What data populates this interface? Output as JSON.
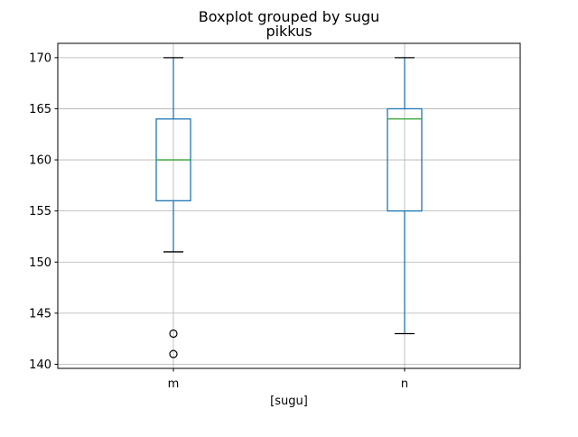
{
  "chart_data": {
    "type": "boxplot",
    "suptitle": "Boxplot grouped by sugu",
    "title": "pikkus",
    "xlabel": "[sugu]",
    "ylabel": "",
    "categories": [
      "m",
      "n"
    ],
    "boxes": [
      {
        "category": "m",
        "whisker_low": 151,
        "q1": 156,
        "median": 160,
        "q3": 164,
        "whisker_high": 170,
        "outliers": [
          143,
          141
        ]
      },
      {
        "category": "n",
        "whisker_low": 143,
        "q1": 155,
        "median": 164,
        "q3": 165,
        "whisker_high": 170,
        "outliers": []
      }
    ],
    "ylim": [
      139.6,
      171.4
    ],
    "yticks": [
      140,
      145,
      150,
      155,
      160,
      165,
      170
    ],
    "grid": true,
    "colors": {
      "box": "#1f77b4",
      "median": "#2ca02c",
      "cap": "#000000",
      "grid": "#b0b0b0"
    }
  }
}
